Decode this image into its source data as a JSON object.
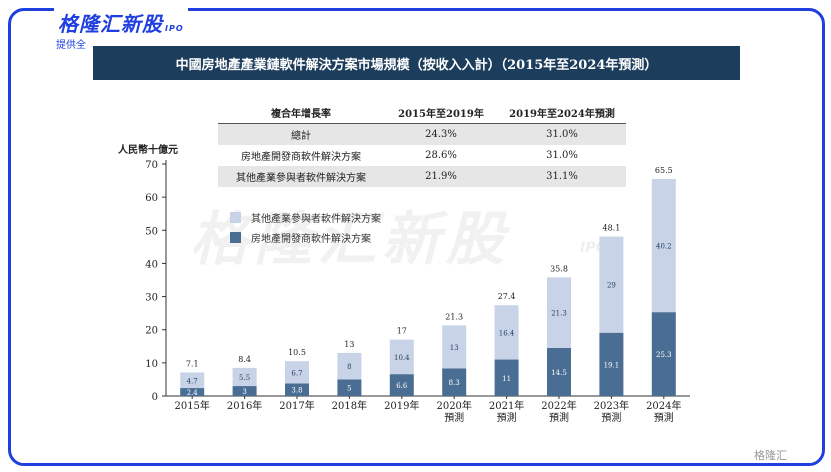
{
  "header": {
    "logo_text": "格隆汇新股",
    "logo_suffix": "IPO",
    "provider": "提供全"
  },
  "title": "中國房地產產業鏈軟件解決方案市場規模（按收入入計）（2015年至2024年預測）",
  "watermark": "格隆汇新股",
  "watermark_suffix": "IPO",
  "footer_logo": "格隆汇",
  "cagr_table": {
    "headers": [
      "複合年增長率",
      "2015年至2019年",
      "2019年至2024年預測"
    ],
    "rows": [
      [
        "總計",
        "24.3%",
        "31.0%"
      ],
      [
        "房地產開發商軟件解決方案",
        "28.6%",
        "31.0%"
      ],
      [
        "其他產業參與者軟件解決方案",
        "21.9%",
        "31.1%"
      ]
    ]
  },
  "colors": {
    "developer": "#4a6e93",
    "other": "#c8d3e7",
    "title_bar": "#1d3d5c",
    "frame": "#1f3fe0"
  },
  "chart_data": {
    "type": "bar",
    "stacked": true,
    "ylabel": "人民幣十億元",
    "ylim": [
      0,
      70
    ],
    "yticks": [
      0,
      10,
      20,
      30,
      40,
      50,
      60,
      70
    ],
    "categories": [
      "2015年",
      "2016年",
      "2017年",
      "2018年",
      "2019年",
      "2020年\n預測",
      "2021年\n預測",
      "2022年\n預測",
      "2023年\n預測",
      "2024年\n預測"
    ],
    "series": [
      {
        "name": "房地產開發商軟件解決方案",
        "values": [
          2.4,
          3.0,
          3.8,
          5.0,
          6.6,
          8.3,
          11.0,
          14.5,
          19.1,
          25.3
        ]
      },
      {
        "name": "其他產業參與者軟件解決方案",
        "values": [
          4.7,
          5.5,
          6.7,
          8.0,
          10.4,
          13.0,
          16.4,
          21.3,
          29.0,
          40.2
        ]
      }
    ],
    "totals": [
      7.1,
      8.4,
      10.5,
      13.0,
      17.0,
      21.3,
      27.4,
      35.8,
      48.1,
      65.5
    ],
    "legend_order": [
      "其他產業參與者軟件解決方案",
      "房地產開發商軟件解決方案"
    ],
    "legend_position": "upper-left"
  }
}
